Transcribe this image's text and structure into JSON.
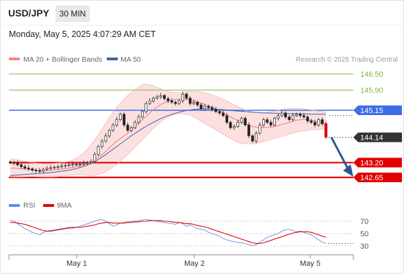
{
  "header": {
    "pair": "USD/JPY",
    "timeframe": "30 MIN",
    "datetime": "Monday, May 5, 2025 4:07:29 AM CET"
  },
  "legend": [
    {
      "label": "MA 20 + Bollinger Bands",
      "color": "#f28b82"
    },
    {
      "label": "MA 50",
      "color": "#3c5fa8"
    }
  ],
  "source": "Research © 2025 Trading Central",
  "chart_data": [
    {
      "type": "candlestick",
      "title": "",
      "x_labels": [
        "May 1",
        "May 2",
        "May 5"
      ],
      "ylim": [
        142.5,
        146.7
      ],
      "levels": [
        {
          "label": "146.50",
          "value": 146.5,
          "color": "#7cbd3e",
          "style": "thin"
        },
        {
          "label": "145.90",
          "value": 145.9,
          "color": "#7cbd3e",
          "style": "thin"
        },
        {
          "label": "145.15",
          "value": 145.15,
          "color": "#3d6ee6",
          "style": "solid"
        },
        {
          "label": "144.14",
          "value": 144.14,
          "color": "#333333",
          "style": "dotted",
          "tag": "current"
        },
        {
          "label": "143.20",
          "value": 143.2,
          "color": "#e00000",
          "style": "thick"
        },
        {
          "label": "142.65",
          "value": 142.65,
          "color": "#e00000",
          "style": "thick"
        }
      ],
      "close": [
        143.2,
        143.18,
        143.12,
        143.05,
        143.0,
        142.97,
        142.92,
        142.9,
        142.88,
        142.95,
        142.99,
        143.01,
        143.03,
        143.05,
        143.08,
        143.1,
        143.12,
        143.14,
        143.13,
        143.15,
        143.18,
        143.2,
        143.25,
        143.5,
        143.8,
        144.0,
        144.2,
        144.4,
        144.6,
        144.8,
        145.0,
        144.6,
        144.4,
        144.5,
        144.7,
        144.9,
        145.1,
        145.4,
        145.5,
        145.6,
        145.65,
        145.7,
        145.58,
        145.5,
        145.45,
        145.4,
        145.5,
        145.75,
        145.6,
        145.4,
        145.45,
        145.35,
        145.2,
        145.3,
        145.25,
        145.18,
        145.1,
        145.05,
        144.95,
        144.7,
        144.5,
        144.55,
        144.7,
        144.85,
        144.6,
        144.2,
        144.0,
        144.3,
        144.6,
        144.8,
        144.7,
        144.6,
        144.85,
        144.95,
        145.05,
        144.9,
        144.8,
        144.95,
        145.0,
        144.95,
        144.9,
        144.75,
        144.7,
        144.6,
        144.8,
        144.65,
        144.15
      ],
      "ma20": [
        143.0,
        143.0,
        142.99,
        142.98,
        142.96,
        142.95,
        142.93,
        142.92,
        142.91,
        142.91,
        142.91,
        142.92,
        142.93,
        142.94,
        142.96,
        142.98,
        143.0,
        143.02,
        143.05,
        143.08,
        143.12,
        143.16,
        143.22,
        143.3,
        143.4,
        143.5,
        143.62,
        143.75,
        143.88,
        144.0,
        144.1,
        144.2,
        144.3,
        144.42,
        144.55,
        144.68,
        144.8,
        144.92,
        145.05,
        145.17,
        145.27,
        145.36,
        145.43,
        145.48,
        145.52,
        145.55,
        145.56,
        145.56,
        145.55,
        145.53,
        145.5,
        145.46,
        145.42,
        145.37,
        145.32,
        145.26,
        145.2,
        145.13,
        145.05,
        144.97,
        144.9,
        144.83,
        144.77,
        144.72,
        144.66,
        144.6,
        144.55,
        144.52,
        144.5,
        144.5,
        144.51,
        144.52,
        144.55,
        144.58,
        144.62,
        144.66,
        144.7,
        144.74,
        144.78,
        144.8,
        144.81,
        144.8,
        144.78,
        144.74,
        144.7,
        144.66,
        144.6
      ],
      "bb_upper": [
        143.35,
        143.33,
        143.3,
        143.27,
        143.25,
        143.23,
        143.2,
        143.18,
        143.17,
        143.16,
        143.16,
        143.16,
        143.17,
        143.18,
        143.2,
        143.22,
        143.25,
        143.3,
        143.36,
        143.45,
        143.56,
        143.7,
        143.86,
        144.04,
        144.24,
        144.45,
        144.67,
        144.88,
        145.08,
        145.26,
        145.42,
        145.57,
        145.7,
        145.82,
        145.93,
        146.02,
        146.1,
        146.12,
        146.1,
        146.05,
        146.0,
        145.95,
        145.9,
        145.85,
        145.82,
        145.8,
        145.8,
        145.82,
        145.84,
        145.85,
        145.85,
        145.84,
        145.82,
        145.8,
        145.76,
        145.72,
        145.67,
        145.62,
        145.56,
        145.5,
        145.42,
        145.35,
        145.28,
        145.22,
        145.16,
        145.12,
        145.09,
        145.07,
        145.06,
        145.06,
        145.07,
        145.09,
        145.12,
        145.15,
        145.18,
        145.2,
        145.21,
        145.22,
        145.22,
        145.21,
        145.2,
        145.18,
        145.16,
        145.14,
        145.12,
        145.1,
        145.08
      ],
      "bb_lower": [
        142.65,
        142.65,
        142.66,
        142.67,
        142.67,
        142.68,
        142.68,
        142.68,
        142.67,
        142.67,
        142.66,
        142.66,
        142.67,
        142.68,
        142.7,
        142.72,
        142.74,
        142.75,
        142.76,
        142.76,
        142.75,
        142.73,
        142.72,
        142.73,
        142.76,
        142.8,
        142.86,
        142.94,
        143.04,
        143.14,
        143.26,
        143.38,
        143.5,
        143.64,
        143.78,
        143.92,
        144.06,
        144.2,
        144.34,
        144.48,
        144.6,
        144.72,
        144.82,
        144.9,
        144.96,
        145.0,
        145.02,
        145.02,
        145.0,
        144.96,
        144.9,
        144.82,
        144.74,
        144.66,
        144.58,
        144.5,
        144.42,
        144.34,
        144.26,
        144.18,
        144.1,
        144.02,
        143.96,
        143.92,
        143.9,
        143.9,
        143.9,
        143.92,
        143.95,
        143.98,
        144.02,
        144.06,
        144.1,
        144.14,
        144.18,
        144.22,
        144.26,
        144.3,
        144.33,
        144.36,
        144.38,
        144.4,
        144.42,
        144.43,
        144.44,
        144.45,
        144.45
      ],
      "ma50": [
        142.72,
        142.73,
        142.74,
        142.75,
        142.76,
        142.77,
        142.78,
        142.79,
        142.8,
        142.81,
        142.82,
        142.83,
        142.84,
        142.86,
        142.88,
        142.9,
        142.92,
        142.95,
        142.98,
        143.02,
        143.06,
        143.11,
        143.17,
        143.24,
        143.32,
        143.41,
        143.5,
        143.6,
        143.7,
        143.8,
        143.9,
        144.0,
        144.1,
        144.2,
        144.29,
        144.38,
        144.47,
        144.55,
        144.63,
        144.7,
        144.77,
        144.84,
        144.9,
        144.95,
        145.0,
        145.04,
        145.08,
        145.11,
        145.14,
        145.16,
        145.18,
        145.19,
        145.2,
        145.2,
        145.2,
        145.2,
        145.19,
        145.18,
        145.17,
        145.16,
        145.14,
        145.13,
        145.12,
        145.11,
        145.1,
        145.09,
        145.08,
        145.07,
        145.06,
        145.05,
        145.05,
        145.04,
        145.04,
        145.03,
        145.03,
        145.02,
        145.02,
        145.02,
        145.02,
        145.01,
        145.01,
        145.01,
        145.0,
        145.0,
        145.0,
        145.0,
        145.0
      ],
      "projection": {
        "from_value": 144.14,
        "to_value": 142.65
      }
    },
    {
      "type": "line",
      "title": "",
      "legend": [
        {
          "name": "RSI",
          "color": "#5b8ee6"
        },
        {
          "name": "9MA",
          "color": "#e00000"
        }
      ],
      "ylim": [
        20,
        80
      ],
      "y_ticks": [
        70,
        50,
        30
      ],
      "series": [
        {
          "name": "RSI",
          "values": [
            72,
            70,
            66,
            62,
            58,
            55,
            52,
            50,
            48,
            52,
            54,
            55,
            56,
            57,
            58,
            59,
            60,
            61,
            60,
            62,
            64,
            66,
            68,
            70,
            72,
            73,
            70,
            66,
            62,
            64,
            67,
            68,
            69,
            70,
            70,
            71,
            72,
            73,
            72,
            71,
            70,
            69,
            68,
            67,
            66,
            65,
            68,
            66,
            62,
            64,
            61,
            58,
            57,
            56,
            52,
            50,
            48,
            46,
            42,
            40,
            38,
            37,
            36,
            35,
            34,
            32,
            30,
            32,
            36,
            40,
            44,
            46,
            48,
            50,
            54,
            56,
            57,
            55,
            53,
            54,
            52,
            50,
            48,
            44,
            40,
            36,
            34
          ]
        },
        {
          "name": "9MA",
          "values": [
            68,
            68,
            67,
            66,
            65,
            63,
            61,
            59,
            57,
            55,
            54,
            54,
            55,
            56,
            57,
            58,
            59,
            59,
            60,
            60,
            61,
            62,
            63,
            64,
            66,
            67,
            68,
            68,
            67,
            67,
            67,
            67,
            68,
            68,
            69,
            69,
            70,
            70,
            71,
            71,
            71,
            71,
            70,
            70,
            69,
            68,
            68,
            67,
            66,
            66,
            65,
            63,
            62,
            61,
            59,
            57,
            55,
            53,
            51,
            49,
            47,
            45,
            43,
            41,
            39,
            37,
            35,
            34,
            34,
            35,
            37,
            39,
            41,
            43,
            45,
            47,
            49,
            51,
            52,
            53,
            53,
            53,
            52,
            50,
            48,
            46,
            44
          ]
        }
      ]
    }
  ]
}
